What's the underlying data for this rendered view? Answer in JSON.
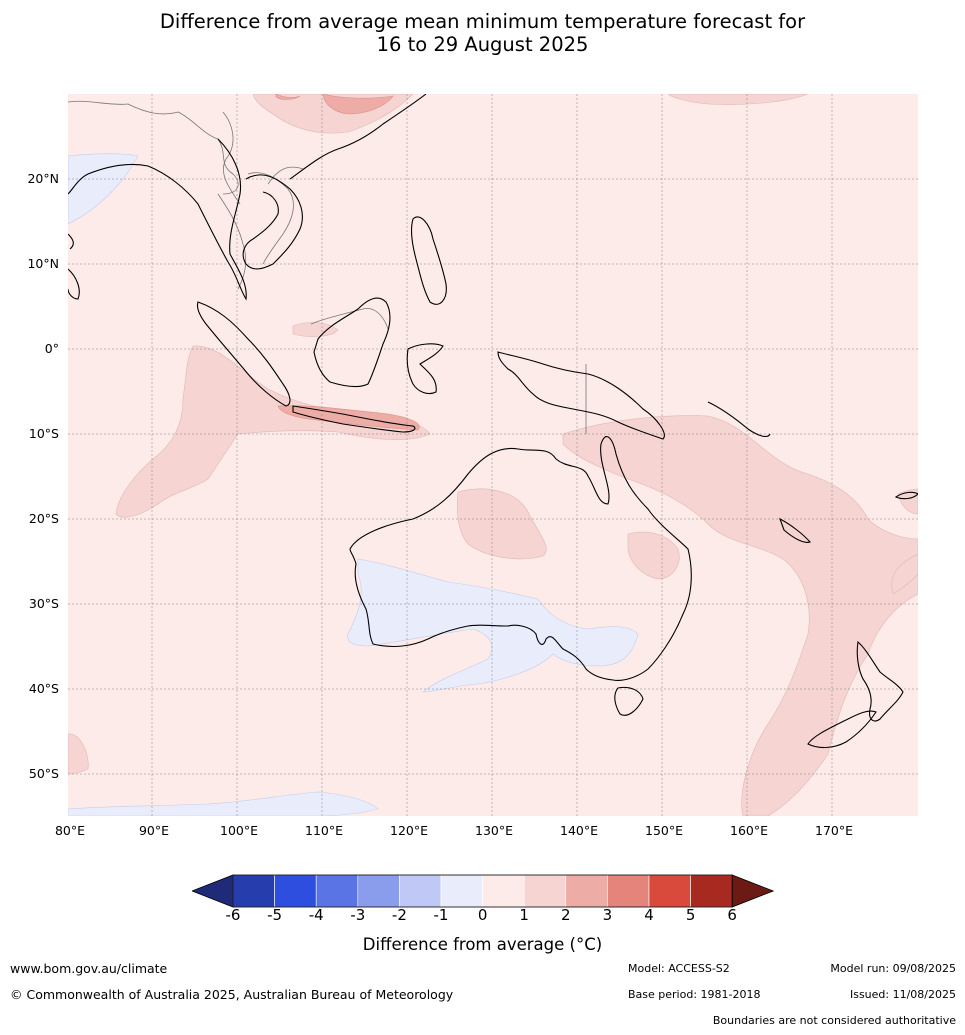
{
  "title": {
    "line1": "Difference from average mean minimum temperature forecast for",
    "line2": "16 to 29 August 2025"
  },
  "map": {
    "lat_labels": [
      "20°N",
      "10°N",
      "0°",
      "10°S",
      "20°S",
      "30°S",
      "40°S",
      "50°S"
    ],
    "lon_labels": [
      "80°E",
      "90°E",
      "100°E",
      "110°E",
      "120°E",
      "130°E",
      "140°E",
      "150°E",
      "160°E",
      "170°E"
    ],
    "colors": {
      "ocean_base": "#fcebe9",
      "warm_1_2": "#f5d4d2",
      "warm_2_3": "#edaca6",
      "cool_0_neg1": "#e9ecfb",
      "coastline": "#000000",
      "borders": "#777777",
      "grid": "#808080"
    }
  },
  "colorbar": {
    "tick_labels": [
      "-6",
      "-5",
      "-4",
      "-3",
      "-2",
      "-1",
      "0",
      "1",
      "2",
      "3",
      "4",
      "5",
      "6"
    ],
    "colors": [
      "#1f2a78",
      "#263ead",
      "#2e4ee0",
      "#5a74e6",
      "#8a9ded",
      "#c0c9f5",
      "#e9ecfb",
      "#fcebe9",
      "#f5d4d2",
      "#edaca6",
      "#e5847a",
      "#d94a3d",
      "#a8291f",
      "#6b1a14"
    ],
    "label": "Difference from average ($^\\circ$C)",
    "label_display": "Difference from average (°C)"
  },
  "footer": {
    "website": "www.bom.gov.au/climate",
    "copyright": "© Commonwealth of Australia 2025, Australian Bureau of Meteorology",
    "model": "Model: ACCESS-S2",
    "base_period": "Base period: 1981-2018",
    "model_run": "Model run: 09/08/2025",
    "issued": "Issued: 11/08/2025",
    "disclaimer": "Boundaries are not considered authoritative"
  }
}
